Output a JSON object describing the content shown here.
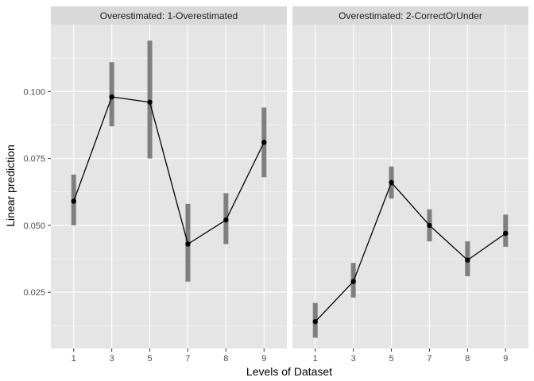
{
  "chart_data": {
    "type": "line",
    "xlabel": "Levels of Dataset",
    "ylabel": "Linear prediction",
    "categories": [
      "1",
      "3",
      "5",
      "7",
      "8",
      "9"
    ],
    "ylim": [
      0.004,
      0.125
    ],
    "yticks": [
      0.025,
      0.05,
      0.075,
      0.1
    ],
    "ytick_labels": [
      "0.025",
      "0.050",
      "0.075",
      "0.100"
    ],
    "grid": true,
    "colors": {
      "panel": "#e5e5e5",
      "strip": "#d9d9d9",
      "grid": "#ffffff",
      "errorbar": "#7f7f7f",
      "line": "#000000"
    },
    "panels": [
      {
        "title": "Overestimated: 1-Overestimated",
        "values": [
          0.059,
          0.098,
          0.096,
          0.043,
          0.052,
          0.081
        ],
        "lower": [
          0.05,
          0.087,
          0.075,
          0.029,
          0.043,
          0.068
        ],
        "upper": [
          0.069,
          0.111,
          0.119,
          0.058,
          0.062,
          0.094
        ]
      },
      {
        "title": "Overestimated: 2-CorrectOrUnder",
        "values": [
          0.014,
          0.029,
          0.066,
          0.05,
          0.037,
          0.047
        ],
        "lower": [
          0.008,
          0.023,
          0.06,
          0.044,
          0.031,
          0.042
        ],
        "upper": [
          0.021,
          0.036,
          0.072,
          0.056,
          0.044,
          0.054
        ]
      }
    ]
  }
}
